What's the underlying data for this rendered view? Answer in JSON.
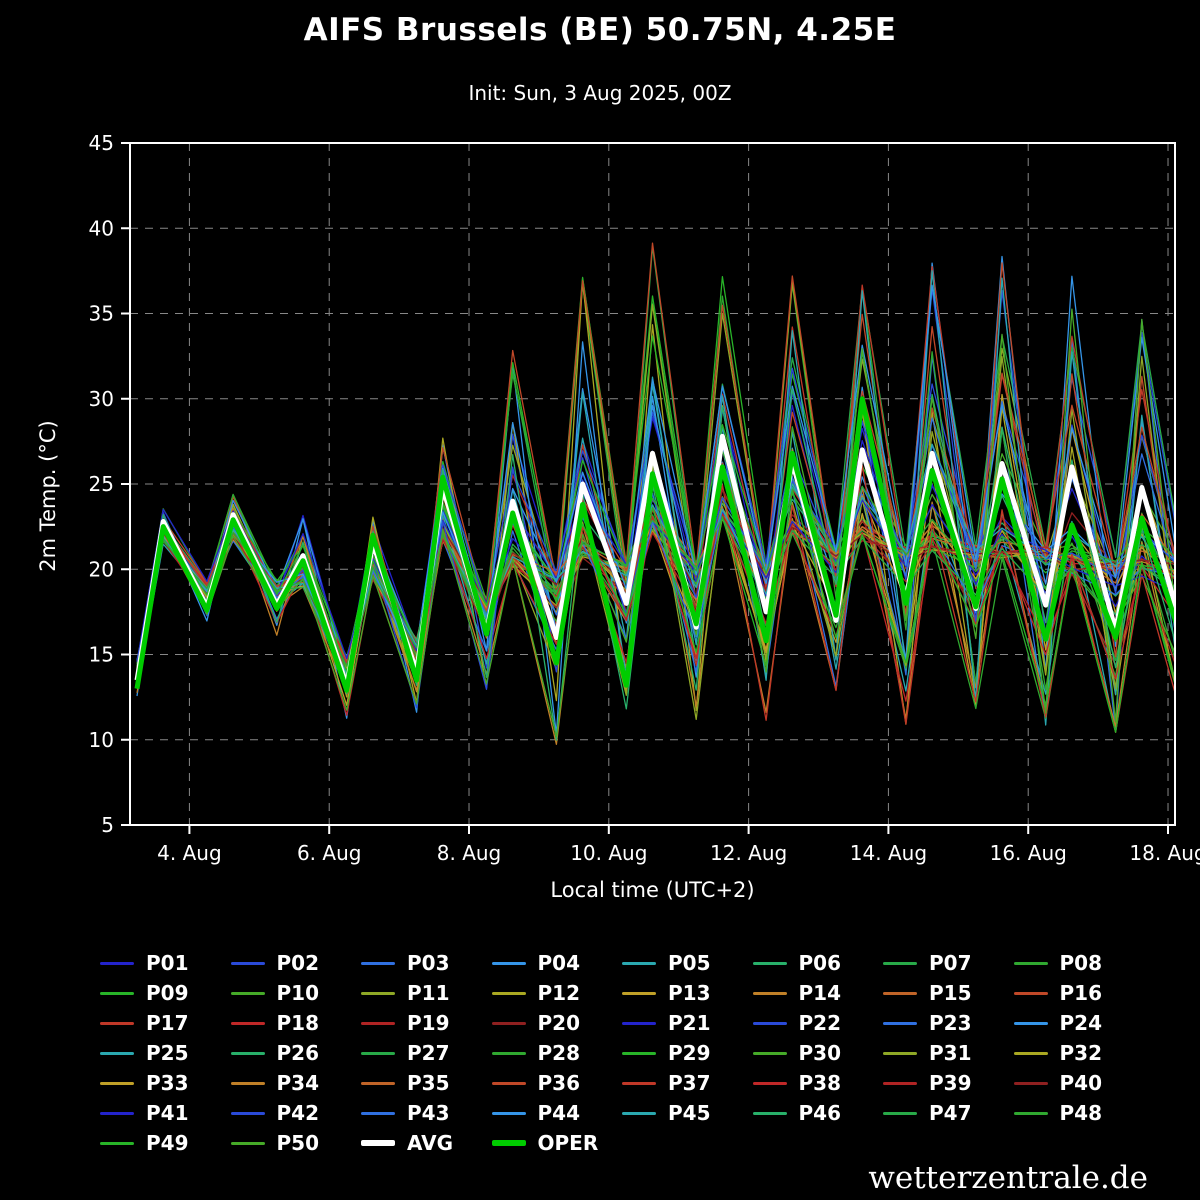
{
  "page": {
    "background": "#000000",
    "foreground": "#ffffff",
    "watermark": "wetterzentrale.de"
  },
  "chart_data": {
    "type": "line",
    "title": "AIFS Brussels (BE) 50.75N, 4.25E",
    "subtitle": "Init: Sun, 3 Aug 2025, 00Z",
    "xlabel": "Local time (UTC+2)",
    "ylabel": "2m Temp. (°C)",
    "ylim": [
      5,
      45
    ],
    "y_ticks": [
      5,
      10,
      15,
      20,
      25,
      30,
      35,
      40,
      45
    ],
    "x_ticks": [
      {
        "day": 4,
        "label": "4. Aug"
      },
      {
        "day": 6,
        "label": "6. Aug"
      },
      {
        "day": 8,
        "label": "8. Aug"
      },
      {
        "day": 10,
        "label": "10. Aug"
      },
      {
        "day": 12,
        "label": "12. Aug"
      },
      {
        "day": 14,
        "label": "14. Aug"
      },
      {
        "day": 16,
        "label": "16. Aug"
      },
      {
        "day": 18,
        "label": "18. Aug"
      }
    ],
    "x_range_days": [
      3.15,
      18.1
    ],
    "grid": true,
    "grid_color": "#888888",
    "legend_position": "bottom",
    "days": [
      3,
      4,
      5,
      6,
      7,
      8,
      9,
      10,
      11,
      12,
      13,
      14,
      15,
      16,
      17,
      18
    ],
    "series": {
      "avg": {
        "name": "AVG",
        "color": "#ffffff",
        "width": 5,
        "daily_min": [
          13.5,
          17.8,
          17.9,
          13.2,
          14.0,
          16.3,
          16.0,
          18.0,
          16.6,
          17.5,
          17.0,
          18.2,
          17.7,
          17.9,
          16.4,
          15.8
        ],
        "daily_max": [
          22.8,
          23.2,
          20.8,
          21.5,
          24.8,
          24.0,
          25.0,
          26.8,
          27.8,
          26.3,
          27.0,
          26.8,
          26.2,
          26.0,
          24.8,
          null
        ]
      },
      "oper": {
        "name": "OPER",
        "color": "#00cc00",
        "width": 5,
        "daily_min": [
          13.0,
          17.6,
          17.7,
          12.9,
          13.5,
          16.2,
          14.5,
          13.2,
          16.8,
          15.8,
          17.3,
          18.0,
          17.8,
          15.9,
          16.0,
          15.2
        ],
        "daily_max": [
          22.5,
          22.9,
          20.5,
          22.0,
          25.4,
          23.3,
          23.8,
          25.6,
          26.0,
          26.8,
          30.0,
          25.8,
          25.3,
          22.6,
          23.0,
          null
        ]
      },
      "ensemble_envelope": {
        "peak_high": [
          23.8,
          24.5,
          23.0,
          23.2,
          27.5,
          32.5,
          37.0,
          39.3,
          36.8,
          37.0,
          36.3,
          37.9,
          38.2,
          36.8,
          34.8,
          null
        ],
        "peak_low": [
          21.8,
          22.0,
          19.3,
          19.8,
          22.0,
          20.5,
          21.0,
          22.5,
          23.0,
          22.5,
          22.0,
          21.5,
          21.0,
          20.0,
          20.0,
          null
        ],
        "min_high": [
          14.5,
          19.0,
          19.0,
          14.5,
          15.5,
          18.0,
          19.5,
          20.0,
          20.0,
          20.0,
          21.0,
          21.0,
          21.0,
          21.0,
          20.5,
          20.0
        ],
        "min_low": [
          12.0,
          16.8,
          16.5,
          11.5,
          11.3,
          13.0,
          10.1,
          12.0,
          11.5,
          11.3,
          13.0,
          11.0,
          12.0,
          11.0,
          10.8,
          10.5
        ]
      }
    },
    "members": [
      {
        "name": "P01",
        "color": "#2323cc"
      },
      {
        "name": "P02",
        "color": "#2a4ad8"
      },
      {
        "name": "P03",
        "color": "#3070e0"
      },
      {
        "name": "P04",
        "color": "#3595e8"
      },
      {
        "name": "P05",
        "color": "#2aa8b0"
      },
      {
        "name": "P06",
        "color": "#28b06a"
      },
      {
        "name": "P07",
        "color": "#28a948"
      },
      {
        "name": "P08",
        "color": "#30a830"
      },
      {
        "name": "P09",
        "color": "#28b428"
      },
      {
        "name": "P10",
        "color": "#46aa28"
      },
      {
        "name": "P11",
        "color": "#8fa826"
      },
      {
        "name": "P12",
        "color": "#aaa822"
      },
      {
        "name": "P13",
        "color": "#c0a028"
      },
      {
        "name": "P14",
        "color": "#c08028"
      },
      {
        "name": "P15",
        "color": "#c06428"
      },
      {
        "name": "P16",
        "color": "#c04828"
      },
      {
        "name": "P17",
        "color": "#c03828"
      },
      {
        "name": "P18",
        "color": "#c02828"
      },
      {
        "name": "P19",
        "color": "#b02424"
      },
      {
        "name": "P20",
        "color": "#8f2020"
      },
      {
        "name": "P21",
        "color": "#2323cc"
      },
      {
        "name": "P22",
        "color": "#2a4ad8"
      },
      {
        "name": "P23",
        "color": "#3070e0"
      },
      {
        "name": "P24",
        "color": "#3595e8"
      },
      {
        "name": "P25",
        "color": "#2aa8b0"
      },
      {
        "name": "P26",
        "color": "#28b06a"
      },
      {
        "name": "P27",
        "color": "#28a948"
      },
      {
        "name": "P28",
        "color": "#30a830"
      },
      {
        "name": "P29",
        "color": "#28b428"
      },
      {
        "name": "P30",
        "color": "#46aa28"
      },
      {
        "name": "P31",
        "color": "#8fa826"
      },
      {
        "name": "P32",
        "color": "#aaa822"
      },
      {
        "name": "P33",
        "color": "#c0a028"
      },
      {
        "name": "P34",
        "color": "#c08028"
      },
      {
        "name": "P35",
        "color": "#c06428"
      },
      {
        "name": "P36",
        "color": "#c04828"
      },
      {
        "name": "P37",
        "color": "#c03828"
      },
      {
        "name": "P38",
        "color": "#c02828"
      },
      {
        "name": "P39",
        "color": "#b02424"
      },
      {
        "name": "P40",
        "color": "#8f2020"
      },
      {
        "name": "P41",
        "color": "#2323cc"
      },
      {
        "name": "P42",
        "color": "#2a4ad8"
      },
      {
        "name": "P43",
        "color": "#3070e0"
      },
      {
        "name": "P44",
        "color": "#3595e8"
      },
      {
        "name": "P45",
        "color": "#2aa8b0"
      },
      {
        "name": "P46",
        "color": "#28b06a"
      },
      {
        "name": "P47",
        "color": "#28a948"
      },
      {
        "name": "P48",
        "color": "#30a830"
      },
      {
        "name": "P49",
        "color": "#28b428"
      },
      {
        "name": "P50",
        "color": "#46aa28"
      }
    ]
  }
}
